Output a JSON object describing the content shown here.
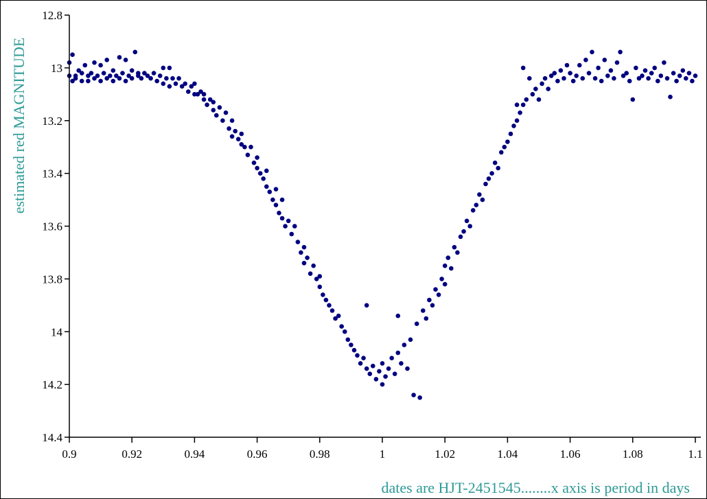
{
  "chart_data": {
    "type": "scatter",
    "title": "",
    "xlabel": "dates are HJT-2451545........x axis is period in days",
    "ylabel": "estimated red MAGNITUDE",
    "xlim": [
      0.9,
      1.1
    ],
    "ylim": [
      12.8,
      14.4
    ],
    "y_inverted": true,
    "x_ticks": [
      "0.9",
      "0.92",
      "0.94",
      "0.96",
      "0.98",
      "1",
      "1.02",
      "1.04",
      "1.06",
      "1.08",
      "1.1"
    ],
    "y_ticks": [
      "12.8",
      "13",
      "13.2",
      "13.4",
      "13.6",
      "13.8",
      "14",
      "14.2",
      "14.4"
    ],
    "grid": false,
    "point_color": "#000080",
    "title_color": "#2e9a96",
    "series": [
      {
        "values": [
          [
            0.9,
            12.98
          ],
          [
            0.9,
            13.03
          ],
          [
            0.901,
            13.05
          ],
          [
            0.901,
            12.95
          ],
          [
            0.902,
            13.03
          ],
          [
            0.902,
            13.04
          ],
          [
            0.903,
            13.01
          ],
          [
            0.904,
            13.02
          ],
          [
            0.904,
            13.05
          ],
          [
            0.905,
            12.99
          ],
          [
            0.906,
            13.03
          ],
          [
            0.906,
            13.05
          ],
          [
            0.907,
            13.02
          ],
          [
            0.908,
            12.98
          ],
          [
            0.908,
            13.04
          ],
          [
            0.909,
            13.03
          ],
          [
            0.91,
            12.99
          ],
          [
            0.91,
            13.05
          ],
          [
            0.911,
            13.02
          ],
          [
            0.912,
            13.04
          ],
          [
            0.912,
            12.97
          ],
          [
            0.913,
            13.03
          ],
          [
            0.914,
            13.05
          ],
          [
            0.914,
            13.01
          ],
          [
            0.915,
            13.03
          ],
          [
            0.916,
            12.96
          ],
          [
            0.916,
            13.04
          ],
          [
            0.917,
            13.02
          ],
          [
            0.918,
            13.05
          ],
          [
            0.918,
            12.97
          ],
          [
            0.919,
            13.03
          ],
          [
            0.92,
            13.04
          ],
          [
            0.92,
            13.01
          ],
          [
            0.921,
            12.94
          ],
          [
            0.922,
            13.03
          ],
          [
            0.922,
            13.02
          ],
          [
            0.923,
            13.04
          ],
          [
            0.924,
            13.02
          ],
          [
            0.925,
            13.03
          ],
          [
            0.926,
            13.04
          ],
          [
            0.927,
            13.02
          ],
          [
            0.928,
            13.05
          ],
          [
            0.929,
            13.03
          ],
          [
            0.93,
            13.06
          ],
          [
            0.93,
            13.0
          ],
          [
            0.931,
            13.04
          ],
          [
            0.932,
            13.07
          ],
          [
            0.932,
            13.0
          ],
          [
            0.933,
            13.04
          ],
          [
            0.934,
            13.06
          ],
          [
            0.935,
            13.04
          ],
          [
            0.936,
            13.07
          ],
          [
            0.937,
            13.06
          ],
          [
            0.938,
            13.09
          ],
          [
            0.939,
            13.07
          ],
          [
            0.94,
            13.1
          ],
          [
            0.94,
            13.06
          ],
          [
            0.941,
            13.1
          ],
          [
            0.942,
            13.09
          ],
          [
            0.943,
            13.12
          ],
          [
            0.943,
            13.1
          ],
          [
            0.944,
            13.14
          ],
          [
            0.945,
            13.12
          ],
          [
            0.946,
            13.16
          ],
          [
            0.946,
            13.13
          ],
          [
            0.947,
            13.18
          ],
          [
            0.948,
            13.15
          ],
          [
            0.949,
            13.2
          ],
          [
            0.95,
            13.17
          ],
          [
            0.951,
            13.23
          ],
          [
            0.952,
            13.2
          ],
          [
            0.952,
            13.26
          ],
          [
            0.953,
            13.24
          ],
          [
            0.954,
            13.27
          ],
          [
            0.955,
            13.29
          ],
          [
            0.955,
            13.25
          ],
          [
            0.956,
            13.3
          ],
          [
            0.957,
            13.33
          ],
          [
            0.958,
            13.3
          ],
          [
            0.959,
            13.36
          ],
          [
            0.96,
            13.38
          ],
          [
            0.96,
            13.34
          ],
          [
            0.961,
            13.4
          ],
          [
            0.962,
            13.42
          ],
          [
            0.963,
            13.45
          ],
          [
            0.963,
            13.39
          ],
          [
            0.964,
            13.47
          ],
          [
            0.965,
            13.5
          ],
          [
            0.966,
            13.52
          ],
          [
            0.966,
            13.46
          ],
          [
            0.967,
            13.55
          ],
          [
            0.968,
            13.57
          ],
          [
            0.968,
            13.5
          ],
          [
            0.969,
            13.6
          ],
          [
            0.97,
            13.58
          ],
          [
            0.971,
            13.63
          ],
          [
            0.972,
            13.6
          ],
          [
            0.973,
            13.66
          ],
          [
            0.974,
            13.7
          ],
          [
            0.975,
            13.68
          ],
          [
            0.975,
            13.74
          ],
          [
            0.976,
            13.72
          ],
          [
            0.977,
            13.78
          ],
          [
            0.978,
            13.75
          ],
          [
            0.979,
            13.8
          ],
          [
            0.98,
            13.83
          ],
          [
            0.98,
            13.79
          ],
          [
            0.981,
            13.86
          ],
          [
            0.982,
            13.88
          ],
          [
            0.983,
            13.9
          ],
          [
            0.984,
            13.92
          ],
          [
            0.985,
            13.95
          ],
          [
            0.986,
            13.94
          ],
          [
            0.987,
            13.98
          ],
          [
            0.988,
            14.0
          ],
          [
            0.989,
            14.03
          ],
          [
            0.99,
            14.05
          ],
          [
            0.991,
            14.07
          ],
          [
            0.992,
            14.09
          ],
          [
            0.993,
            14.12
          ],
          [
            0.994,
            14.1
          ],
          [
            0.995,
            13.9
          ],
          [
            0.995,
            14.14
          ],
          [
            0.996,
            14.16
          ],
          [
            0.997,
            14.13
          ],
          [
            0.998,
            14.18
          ],
          [
            0.999,
            14.15
          ],
          [
            1.0,
            14.2
          ],
          [
            1.0,
            14.12
          ],
          [
            1.001,
            14.17
          ],
          [
            1.002,
            14.14
          ],
          [
            1.003,
            14.1
          ],
          [
            1.004,
            14.16
          ],
          [
            1.005,
            14.08
          ],
          [
            1.005,
            13.94
          ],
          [
            1.006,
            14.12
          ],
          [
            1.007,
            14.05
          ],
          [
            1.008,
            14.14
          ],
          [
            1.009,
            14.03
          ],
          [
            1.01,
            14.24
          ],
          [
            1.011,
            13.97
          ],
          [
            1.012,
            14.25
          ],
          [
            1.013,
            13.92
          ],
          [
            1.014,
            13.95
          ],
          [
            1.015,
            13.88
          ],
          [
            1.016,
            13.9
          ],
          [
            1.017,
            13.84
          ],
          [
            1.018,
            13.86
          ],
          [
            1.019,
            13.8
          ],
          [
            1.02,
            13.82
          ],
          [
            1.02,
            13.75
          ],
          [
            1.021,
            13.72
          ],
          [
            1.022,
            13.76
          ],
          [
            1.023,
            13.68
          ],
          [
            1.024,
            13.7
          ],
          [
            1.025,
            13.64
          ],
          [
            1.026,
            13.62
          ],
          [
            1.027,
            13.58
          ],
          [
            1.028,
            13.6
          ],
          [
            1.029,
            13.54
          ],
          [
            1.03,
            13.52
          ],
          [
            1.031,
            13.48
          ],
          [
            1.032,
            13.5
          ],
          [
            1.033,
            13.44
          ],
          [
            1.034,
            13.42
          ],
          [
            1.035,
            13.4
          ],
          [
            1.036,
            13.36
          ],
          [
            1.037,
            13.38
          ],
          [
            1.038,
            13.32
          ],
          [
            1.039,
            13.3
          ],
          [
            1.04,
            13.28
          ],
          [
            1.041,
            13.25
          ],
          [
            1.042,
            13.22
          ],
          [
            1.043,
            13.2
          ],
          [
            1.043,
            13.14
          ],
          [
            1.044,
            13.17
          ],
          [
            1.045,
            13.0
          ],
          [
            1.045,
            13.14
          ],
          [
            1.046,
            13.12
          ],
          [
            1.047,
            13.04
          ],
          [
            1.048,
            13.1
          ],
          [
            1.049,
            13.08
          ],
          [
            1.05,
            13.12
          ],
          [
            1.051,
            13.06
          ],
          [
            1.052,
            13.04
          ],
          [
            1.053,
            13.08
          ],
          [
            1.054,
            13.03
          ],
          [
            1.055,
            13.02
          ],
          [
            1.056,
            13.05
          ],
          [
            1.057,
            13.01
          ],
          [
            1.058,
            13.04
          ],
          [
            1.059,
            12.99
          ],
          [
            1.06,
            13.02
          ],
          [
            1.061,
            13.05
          ],
          [
            1.062,
            13.03
          ],
          [
            1.063,
            12.99
          ],
          [
            1.064,
            13.04
          ],
          [
            1.065,
            12.97
          ],
          [
            1.066,
            13.02
          ],
          [
            1.067,
            12.94
          ],
          [
            1.068,
            13.04
          ],
          [
            1.069,
            13.0
          ],
          [
            1.07,
            13.05
          ],
          [
            1.071,
            12.97
          ],
          [
            1.072,
            13.03
          ],
          [
            1.073,
            13.01
          ],
          [
            1.074,
            13.04
          ],
          [
            1.075,
            12.98
          ],
          [
            1.076,
            12.94
          ],
          [
            1.077,
            13.03
          ],
          [
            1.078,
            13.02
          ],
          [
            1.079,
            13.05
          ],
          [
            1.08,
            13.12
          ],
          [
            1.081,
            13.0
          ],
          [
            1.082,
            13.04
          ],
          [
            1.083,
            13.03
          ],
          [
            1.084,
            13.01
          ],
          [
            1.085,
            13.04
          ],
          [
            1.086,
            13.02
          ],
          [
            1.087,
            13.0
          ],
          [
            1.088,
            13.05
          ],
          [
            1.089,
            13.03
          ],
          [
            1.09,
            12.98
          ],
          [
            1.091,
            13.04
          ],
          [
            1.092,
            13.11
          ],
          [
            1.093,
            13.02
          ],
          [
            1.094,
            13.05
          ],
          [
            1.095,
            13.03
          ],
          [
            1.096,
            13.01
          ],
          [
            1.097,
            13.04
          ],
          [
            1.098,
            13.02
          ],
          [
            1.099,
            13.05
          ],
          [
            1.1,
            13.03
          ]
        ]
      }
    ]
  }
}
